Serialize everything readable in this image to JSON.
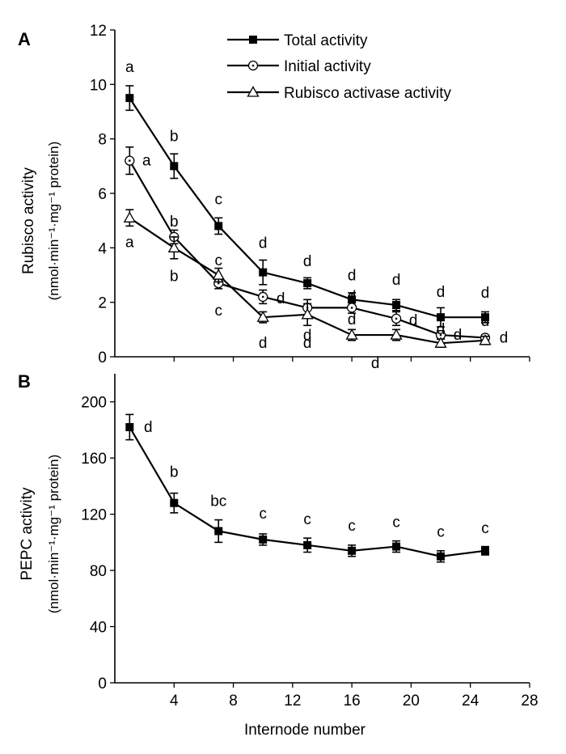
{
  "chart_data": [
    {
      "panel_label": "A",
      "type": "line",
      "ylabel_main": "Rubisco activity",
      "ylabel_unit": "(nmol·min⁻¹·mg⁻¹ protein)",
      "ylim": [
        0,
        12
      ],
      "yticks": [
        0,
        2,
        4,
        6,
        8,
        10,
        12
      ],
      "x": [
        1,
        4,
        7,
        10,
        13,
        16,
        19,
        22,
        25
      ],
      "series": [
        {
          "name": "Total activity",
          "marker": "filled-square",
          "values": [
            9.5,
            7.0,
            4.8,
            3.1,
            2.7,
            2.1,
            1.9,
            1.45,
            1.45
          ],
          "errors": [
            0.45,
            0.45,
            0.3,
            0.45,
            0.2,
            0.25,
            0.2,
            0.35,
            0.2
          ],
          "letters": [
            "a",
            "b",
            "c",
            "d",
            "d",
            "d",
            "d",
            "d",
            "d"
          ]
        },
        {
          "name": "Initial activity",
          "marker": "open-circle-dot",
          "values": [
            7.2,
            4.4,
            2.7,
            2.2,
            1.8,
            1.8,
            1.4,
            0.8,
            0.7
          ],
          "errors": [
            0.5,
            0.25,
            0.2,
            0.25,
            0.3,
            0.2,
            0.25,
            0.15,
            0.1
          ],
          "letters": [
            "a",
            "b",
            "c",
            "d",
            "d",
            "d",
            "d",
            "d",
            "d"
          ]
        },
        {
          "name": "Rubisco activase activity",
          "marker": "open-triangle",
          "values": [
            5.1,
            4.0,
            3.0,
            1.45,
            1.55,
            0.8,
            0.8,
            0.5,
            0.6
          ],
          "errors": [
            0.3,
            0.4,
            0.25,
            0.2,
            0.4,
            0.2,
            0.2,
            0.15,
            0.15
          ],
          "letters": [
            "a",
            "b",
            "c",
            "d",
            "d",
            "d",
            "d",
            "d",
            "d"
          ]
        }
      ]
    },
    {
      "panel_label": "B",
      "type": "line",
      "ylabel_main": "PEPC activity",
      "ylabel_unit": "(nmol·min⁻¹·mg⁻¹ protein)",
      "xlabel": "Internode number",
      "ylim": [
        0,
        220
      ],
      "yticks": [
        0,
        40,
        80,
        120,
        160,
        200
      ],
      "xlim": [
        0,
        28
      ],
      "xticks": [
        4,
        8,
        12,
        16,
        20,
        24,
        28
      ],
      "x": [
        1,
        4,
        7,
        10,
        13,
        16,
        19,
        22,
        25
      ],
      "series": [
        {
          "name": "PEPC activity",
          "marker": "filled-square",
          "values": [
            182,
            128,
            108,
            102,
            98,
            94,
            97,
            90,
            94
          ],
          "errors": [
            9,
            7,
            8,
            4,
            5,
            4,
            4,
            4,
            3
          ],
          "letters": [
            "d",
            "b",
            "bc",
            "c",
            "c",
            "c",
            "c",
            "c",
            "c"
          ]
        }
      ]
    }
  ]
}
